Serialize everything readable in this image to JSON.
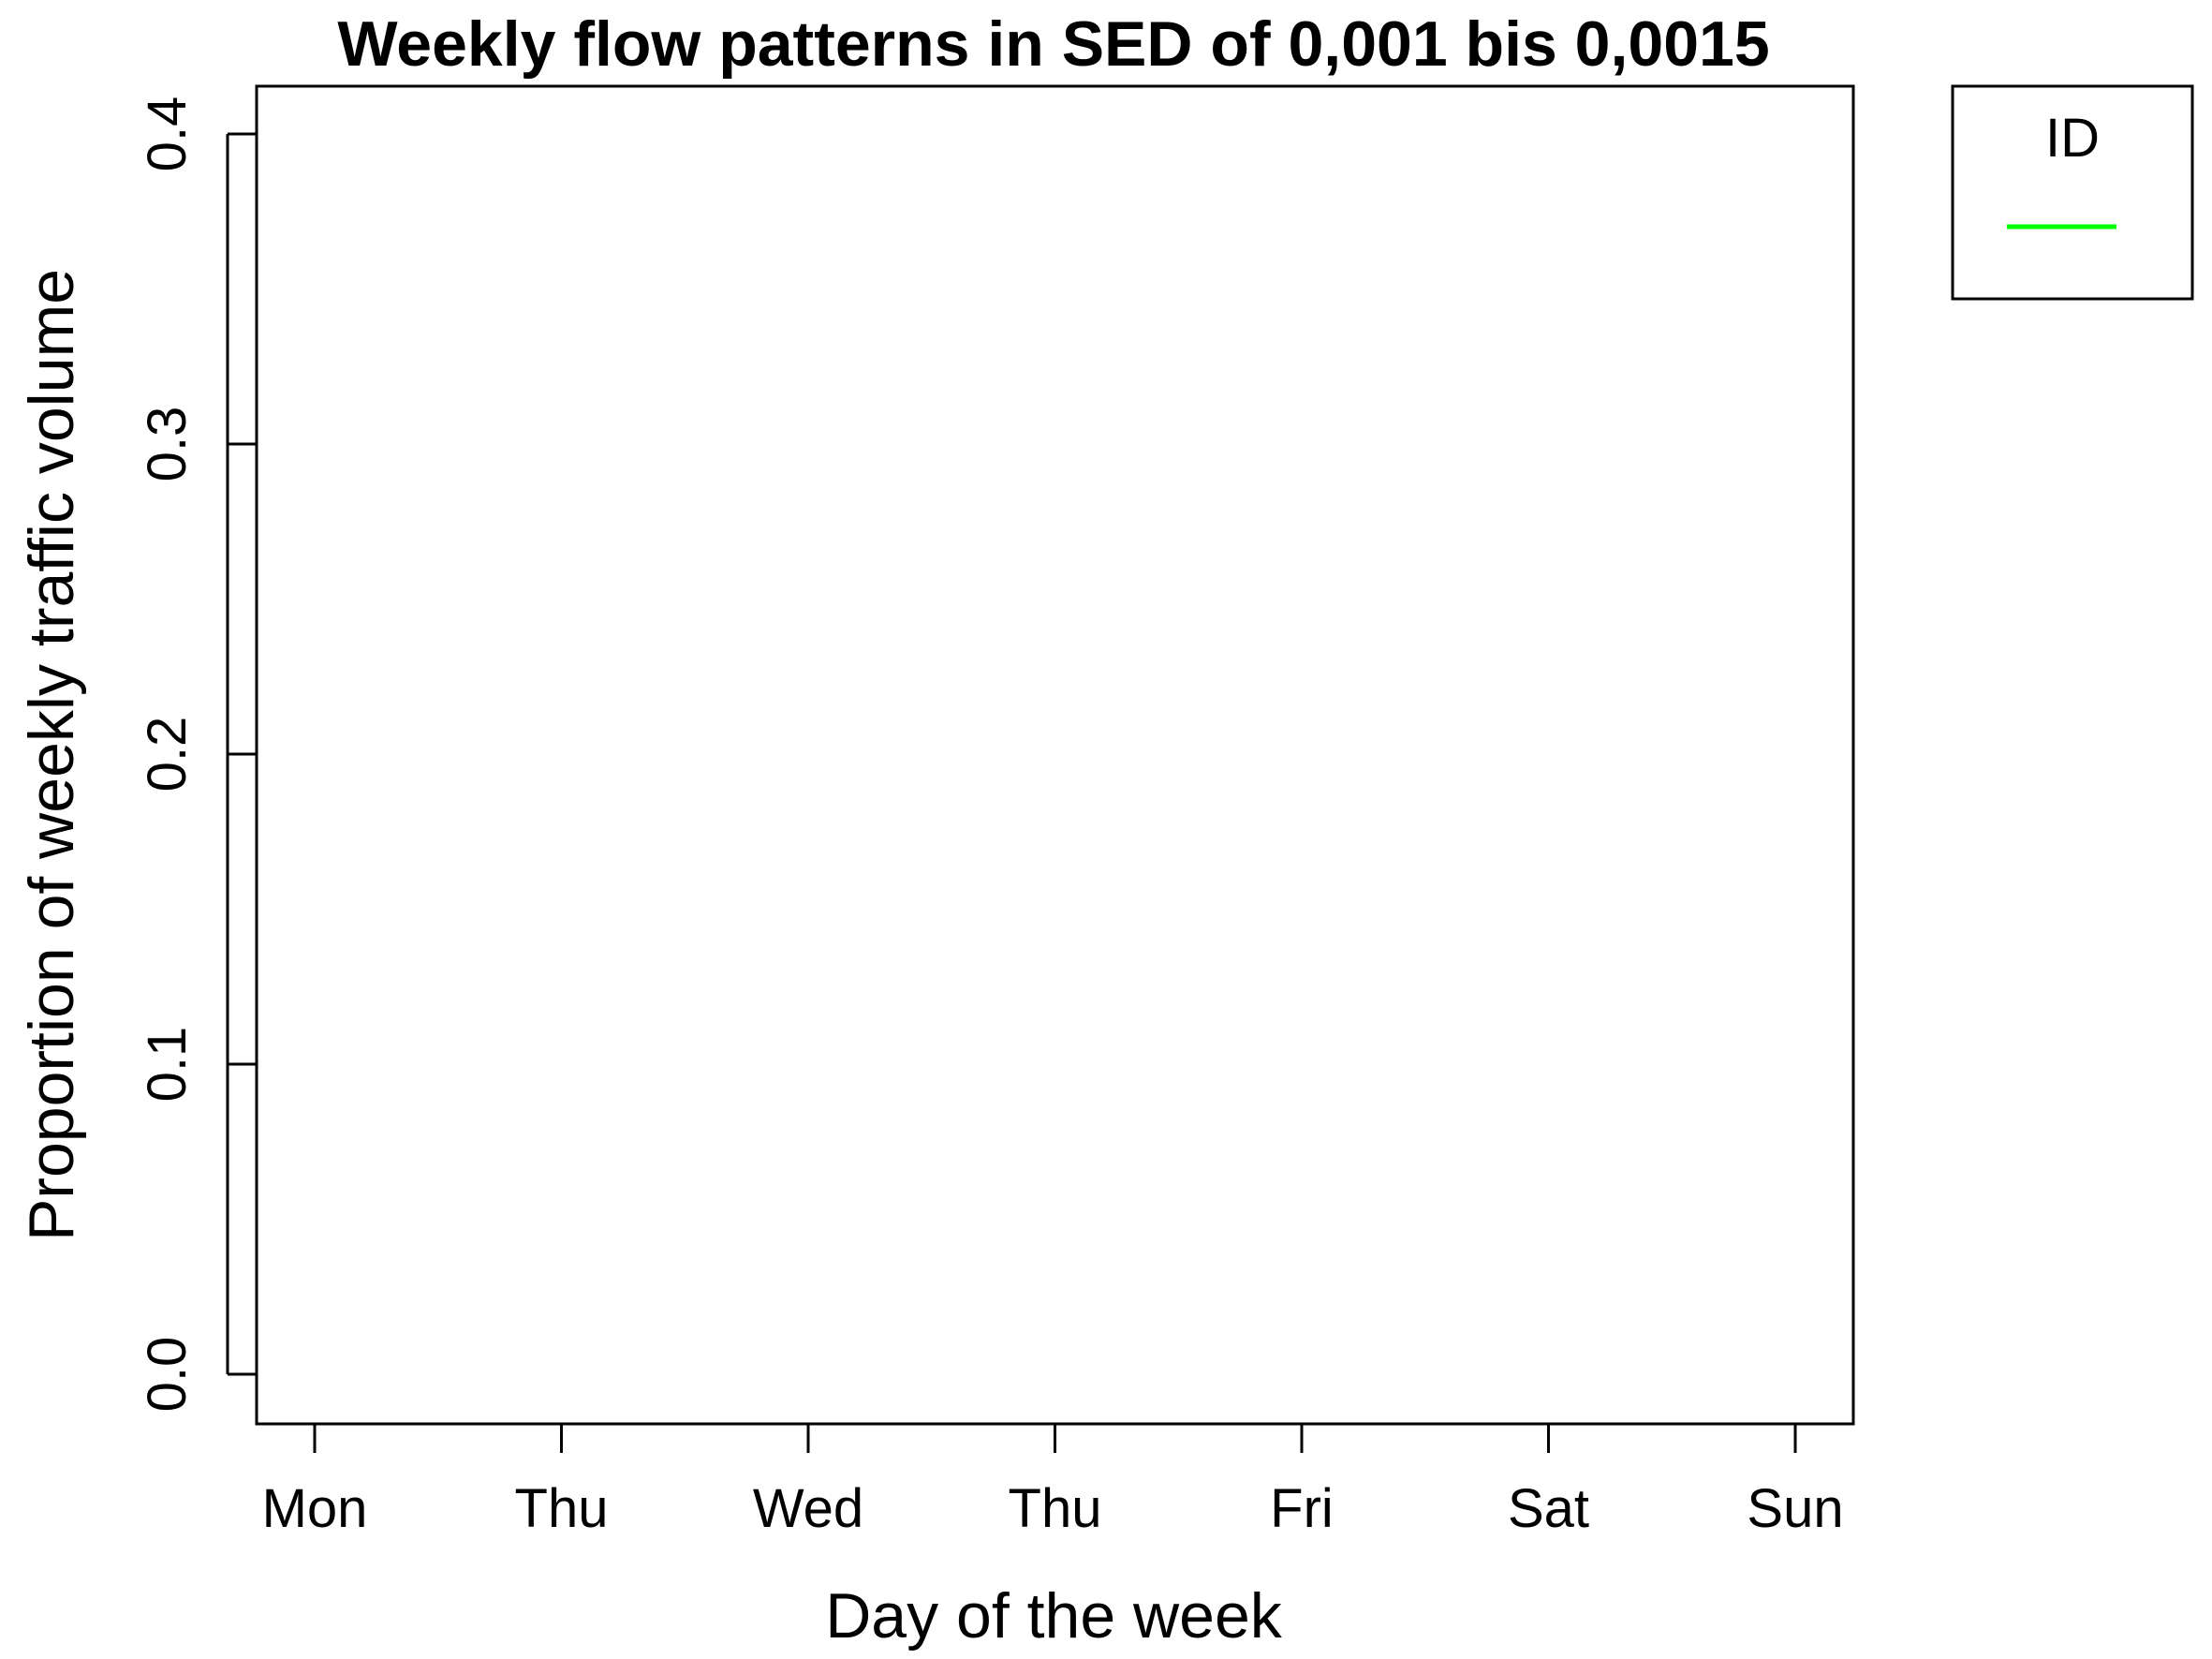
{
  "chart_data": {
    "type": "line",
    "title": "Weekly flow patterns in SED of 0,001 bis 0,0015",
    "xlabel": "Day of the week",
    "ylabel": "Proportion of weekly traffic volume",
    "categories": [
      "Mon",
      "Thu",
      "Wed",
      "Thu",
      "Fri",
      "Sat",
      "Sun"
    ],
    "yticks": [
      "0.0",
      "0.1",
      "0.2",
      "0.3",
      "0.4"
    ],
    "ylim": [
      0,
      0.4
    ],
    "grid": false,
    "legend": {
      "title": "ID",
      "placement": "top-right outside plot",
      "entries": [
        {
          "label": "",
          "color": "#00ff00"
        }
      ]
    },
    "series": []
  }
}
